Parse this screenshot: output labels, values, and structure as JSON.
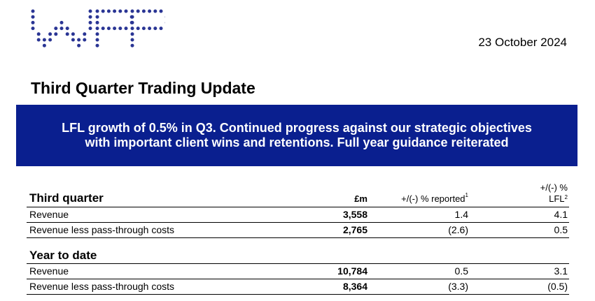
{
  "header": {
    "logo_text": "WPP",
    "date": "23 October 2024",
    "title": "Third Quarter Trading Update"
  },
  "banner": {
    "line1": "LFL growth of 0.5% in Q3. Continued progress against our strategic objectives",
    "line2": "with important client wins and retentions. Full year guidance reiterated",
    "background": "#0a1f8f"
  },
  "table": {
    "columns": {
      "gbp": "£m",
      "reported": "+/(-) % reported",
      "reported_note": "1",
      "lfl_line1": "+/(-) %",
      "lfl_line2": "LFL",
      "lfl_note": "2"
    },
    "third_quarter": {
      "heading": "Third quarter",
      "rows": [
        {
          "label": "Revenue",
          "gbp": "3,558",
          "reported": "1.4",
          "lfl": "4.1"
        },
        {
          "label": "Revenue less pass-through costs",
          "gbp": "2,765",
          "reported": "(2.6)",
          "lfl": "0.5"
        }
      ]
    },
    "year_to_date": {
      "heading": "Year to date",
      "rows": [
        {
          "label": "Revenue",
          "gbp": "10,784",
          "reported": "0.5",
          "lfl": "3.1"
        },
        {
          "label": "Revenue less pass-through costs",
          "gbp": "8,364",
          "reported": "(3.3)",
          "lfl": "(0.5)"
        }
      ]
    }
  }
}
